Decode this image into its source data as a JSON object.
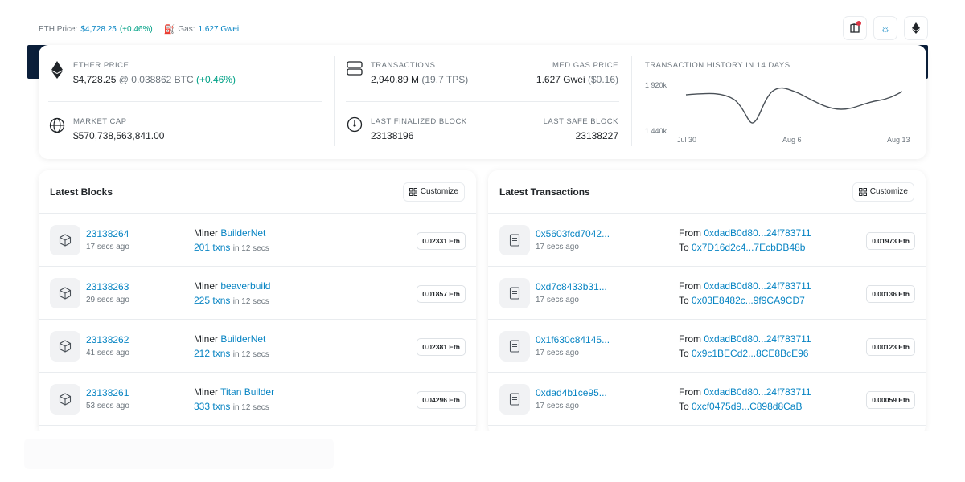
{
  "topbar": {
    "eth_price_label": "ETH Price:",
    "eth_price_value": "$4,728.25",
    "eth_price_change": "(+0.46%)",
    "gas_label": "Gas:",
    "gas_value": "1.627 Gwei",
    "icons": [
      "notification-icon",
      "theme-sun-icon",
      "ethereum-icon"
    ]
  },
  "overview": {
    "ether_price": {
      "label": "ETHER PRICE",
      "usd": "$4,728.25",
      "at": "@",
      "btc": "0.038862 BTC",
      "change": "(+0.46%)"
    },
    "market_cap": {
      "label": "MARKET CAP",
      "value": "$570,738,563,841.00"
    },
    "transactions": {
      "label": "TRANSACTIONS",
      "value": "2,940.89 M",
      "tps": "(19.7 TPS)"
    },
    "med_gas": {
      "label": "MED GAS PRICE",
      "value": "1.627 Gwei",
      "usd": "($0.16)"
    },
    "last_finalized": {
      "label": "LAST FINALIZED BLOCK",
      "value": "23138196"
    },
    "last_safe": {
      "label": "LAST SAFE BLOCK",
      "value": "23138227"
    },
    "history": {
      "label": "TRANSACTION HISTORY IN 14 DAYS",
      "y_high": "1 920k",
      "y_low": "1 440k",
      "x_ticks": [
        "Jul 30",
        "Aug 6",
        "Aug 13"
      ]
    }
  },
  "blocks": {
    "title": "Latest Blocks",
    "customize": "Customize",
    "miner_label": "Miner",
    "in_label": "in 12 secs",
    "items": [
      {
        "number": "23138264",
        "age": "17 secs ago",
        "miner": "BuilderNet",
        "txns": "201 txns",
        "reward": "0.02331 Eth"
      },
      {
        "number": "23138263",
        "age": "29 secs ago",
        "miner": "beaverbuild",
        "txns": "225 txns",
        "reward": "0.01857 Eth"
      },
      {
        "number": "23138262",
        "age": "41 secs ago",
        "miner": "BuilderNet",
        "txns": "212 txns",
        "reward": "0.02381 Eth"
      },
      {
        "number": "23138261",
        "age": "53 secs ago",
        "miner": "Titan Builder",
        "txns": "333 txns",
        "reward": "0.04296 Eth"
      }
    ]
  },
  "transactions": {
    "title": "Latest Transactions",
    "customize": "Customize",
    "from_label": "From",
    "to_label": "To",
    "items": [
      {
        "hash": "0x5603fcd7042...",
        "age": "17 secs ago",
        "from": "0xdadB0d80...24f783711",
        "to": "0x7D16d2c4...7EcbDB48b",
        "value": "0.01973 Eth"
      },
      {
        "hash": "0xd7c8433b31...",
        "age": "17 secs ago",
        "from": "0xdadB0d80...24f783711",
        "to": "0x03E8482c...9f9CA9CD7",
        "value": "0.00136 Eth"
      },
      {
        "hash": "0x1f630c84145...",
        "age": "17 secs ago",
        "from": "0xdadB0d80...24f783711",
        "to": "0x9c1BECd2...8CE8BcE96",
        "value": "0.00123 Eth"
      },
      {
        "hash": "0xdad4b1ce95...",
        "age": "17 secs ago",
        "from": "0xdadB0d80...24f783711",
        "to": "0xcf0475d9...C898d8CaB",
        "value": "0.00059 Eth"
      }
    ]
  },
  "colors": {
    "accent": "#0784c3",
    "positive": "#00a186",
    "navy": "#0b1f3a"
  }
}
